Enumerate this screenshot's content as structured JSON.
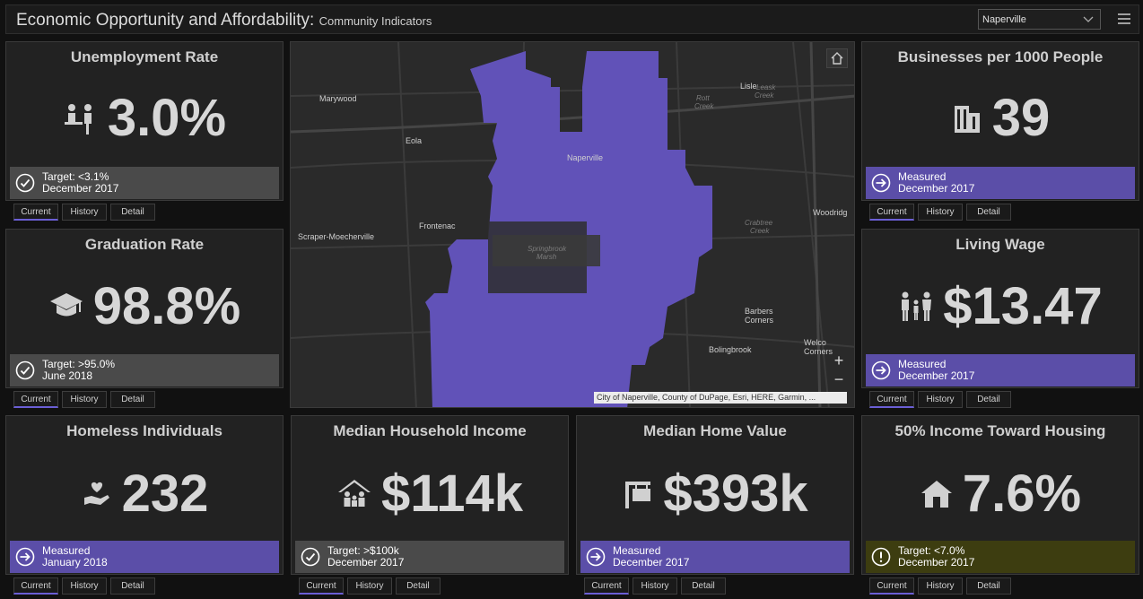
{
  "header": {
    "title": "Economic Opportunity and Affordability:",
    "subtitle": "Community Indicators",
    "selected_city": "Naperville"
  },
  "tab_labels": {
    "current": "Current",
    "history": "History",
    "detail": "Detail"
  },
  "cards": {
    "unemployment": {
      "title": "Unemployment Rate",
      "value": "3.0%",
      "status_line1": "Target: <3.1%",
      "status_line2": "December 2017",
      "status_icon": "check-circle-icon"
    },
    "graduation": {
      "title": "Graduation Rate",
      "value": "98.8%",
      "status_line1": "Target: >95.0%",
      "status_line2": "June 2018",
      "status_icon": "check-circle-icon"
    },
    "businesses": {
      "title": "Businesses per 1000 People",
      "value": "39",
      "status_line1": "Measured",
      "status_line2": "December 2017",
      "status_icon": "arrow-circle-icon"
    },
    "living_wage": {
      "title": "Living Wage",
      "value": "$13.47",
      "status_line1": "Measured",
      "status_line2": "December 2017",
      "status_icon": "arrow-circle-icon"
    },
    "homeless": {
      "title": "Homeless Individuals",
      "value": "232",
      "status_line1": "Measured",
      "status_line2": "January 2018",
      "status_icon": "arrow-circle-icon"
    },
    "household_income": {
      "title": "Median Household Income",
      "value": "$114k",
      "status_line1": "Target: >$100k",
      "status_line2": "December 2017",
      "status_icon": "check-circle-icon"
    },
    "home_value": {
      "title": "Median Home Value",
      "value": "$393k",
      "status_line1": "Measured",
      "status_line2": "December 2017",
      "status_icon": "arrow-circle-icon"
    },
    "housing_burden": {
      "title": "50% Income Toward Housing",
      "value": "7.6%",
      "status_line1": "Target: <7.0%",
      "status_line2": "December 2017",
      "status_icon": "alert-circle-icon"
    }
  },
  "map": {
    "places": {
      "marywood": "Marywood",
      "eola": "Eola",
      "naperville": "Naperville",
      "frontenac": "Frontenac",
      "scraper": "Scraper-Moecherville",
      "lisle": "Lisle",
      "woodridge": "Woodridg",
      "barbers": "Barbers",
      "corners": "Corners",
      "bolingbrook": "Bolingbrook",
      "welco": "Welco",
      "welco_corners": "Corners",
      "rott1": "Rott",
      "rott2": "Creek",
      "leask1": "Leask",
      "leask2": "Creek",
      "crabtree1": "Crabtree",
      "crabtree2": "Creek",
      "springbrook1": "Springbrook",
      "springbrook2": "Marsh"
    },
    "zoom_in": "+",
    "zoom_out": "−",
    "attribution": "City of Naperville, County of DuPage, Esri, HERE, Garmin, ..."
  },
  "colors": {
    "accent": "#5b4ea8",
    "boundary": "#6152b8",
    "target_met": "#4a4a4a",
    "target_warn": "#3d3d10"
  }
}
